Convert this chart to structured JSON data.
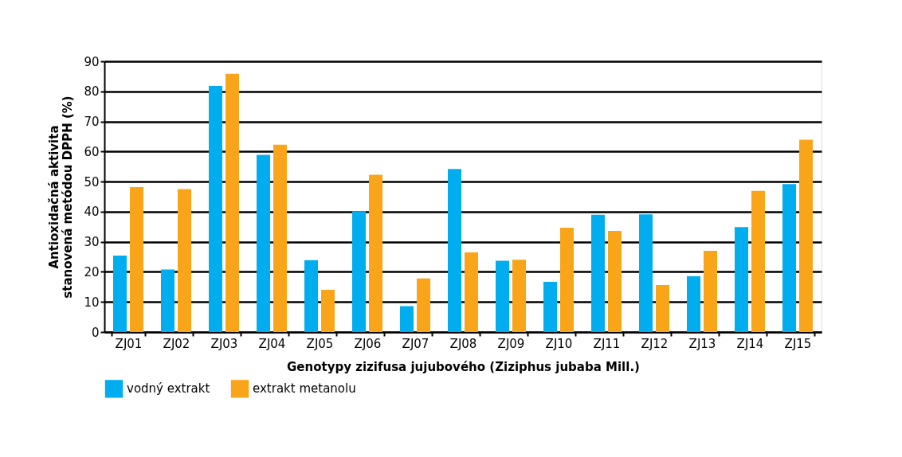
{
  "chart_data": {
    "type": "bar",
    "xlabel": "Genotypy zizifusa jujubového (Ziziphus jubaba Mill.)",
    "ylabel": "Antioxidačná aktivita stanovená metódou DPPH (%)",
    "categories": [
      "ZJ01",
      "ZJ02",
      "ZJ03",
      "ZJ04",
      "ZJ05",
      "ZJ06",
      "ZJ07",
      "ZJ08",
      "ZJ09",
      "ZJ10",
      "ZJ11",
      "ZJ12",
      "ZJ13",
      "ZJ14",
      "ZJ15"
    ],
    "series": [
      {
        "name": "vodný extrakt",
        "color": "#00adef",
        "values": [
          25.4,
          20.8,
          81.8,
          58.9,
          23.9,
          40.2,
          8.6,
          54.2,
          23.7,
          16.7,
          39.0,
          39.1,
          18.5,
          34.9,
          49.2
        ]
      },
      {
        "name": "extrakt metanolu",
        "color": "#f9a51a",
        "values": [
          48.2,
          47.5,
          85.8,
          62.3,
          14.0,
          52.3,
          17.8,
          26.5,
          24.0,
          34.7,
          33.6,
          15.6,
          27.0,
          46.9,
          63.9
        ]
      }
    ],
    "ylim": [
      0,
      90
    ],
    "yticks": [
      0,
      10,
      20,
      30,
      40,
      50,
      60,
      70,
      80,
      90
    ],
    "grid": "y",
    "legend": "bottom"
  }
}
